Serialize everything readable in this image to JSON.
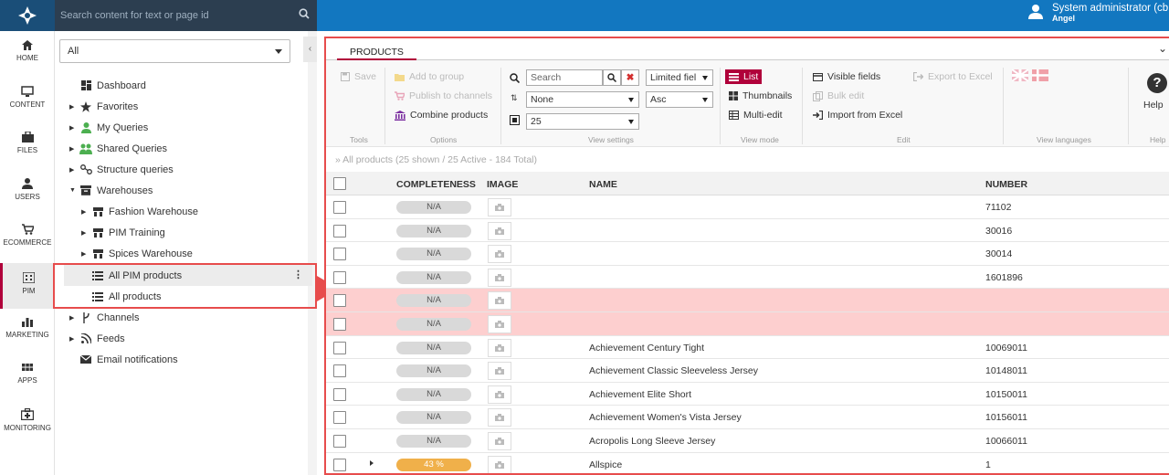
{
  "topbar": {
    "search_placeholder": "Search content for text or page id",
    "user_name": "System administrator (cb",
    "user_sub": "Angel"
  },
  "nav": [
    {
      "label": "HOME",
      "icon": "home-icon"
    },
    {
      "label": "CONTENT",
      "icon": "monitor-icon"
    },
    {
      "label": "FILES",
      "icon": "briefcase-icon"
    },
    {
      "label": "USERS",
      "icon": "user-icon"
    },
    {
      "label": "ECOMMERCE",
      "icon": "cart-icon"
    },
    {
      "label": "PIM",
      "icon": "building-icon",
      "active": true
    },
    {
      "label": "MARKETING",
      "icon": "bar-chart-icon"
    },
    {
      "label": "APPS",
      "icon": "grid-icon"
    },
    {
      "label": "MONITORING",
      "icon": "medkit-icon"
    }
  ],
  "tree": {
    "filter_value": "All",
    "items": [
      {
        "label": "Dashboard"
      },
      {
        "label": "Favorites"
      },
      {
        "label": "My Queries"
      },
      {
        "label": "Shared Queries"
      },
      {
        "label": "Structure queries"
      },
      {
        "label": "Warehouses"
      },
      {
        "label": "Fashion Warehouse"
      },
      {
        "label": "PIM Training"
      },
      {
        "label": "Spices Warehouse"
      },
      {
        "label": "All PIM products"
      },
      {
        "label": "All products"
      },
      {
        "label": "Channels"
      },
      {
        "label": "Feeds"
      },
      {
        "label": "Email notifications"
      }
    ],
    "more_menu": "⋮"
  },
  "panel": {
    "tab": "PRODUCTS",
    "collapse": "⌄",
    "ribbon": {
      "save": "Save",
      "add_to_group": "Add to group",
      "publish": "Publish to channels",
      "combine": "Combine products",
      "search_placeholder": "Search",
      "sort_field": "None",
      "page_size": "25",
      "fields_mode": "Limited fiel",
      "sort_dir": "Asc",
      "list": "List",
      "thumbnails": "Thumbnails",
      "multi_edit": "Multi-edit",
      "visible_fields": "Visible fields",
      "bulk_edit": "Bulk edit",
      "import_excel": "Import from Excel",
      "export_excel": "Export to Excel",
      "help": "Help",
      "groups": {
        "tools": "Tools",
        "options": "Options",
        "view_settings": "View settings",
        "view_mode": "View mode",
        "edit": "Edit",
        "view_languages": "View languages",
        "help": "Help"
      }
    },
    "summary": "» All products (25 shown / 25 Active - 184 Total)",
    "columns": {
      "completeness": "COMPLETENESS",
      "image": "IMAGE",
      "name": "NAME",
      "number": "NUMBER"
    },
    "rows": [
      {
        "completeness": "N/A",
        "name": "",
        "number": "71102"
      },
      {
        "completeness": "N/A",
        "name": "",
        "number": "30016"
      },
      {
        "completeness": "N/A",
        "name": "",
        "number": "30014"
      },
      {
        "completeness": "N/A",
        "name": "",
        "number": "1601896"
      },
      {
        "completeness": "N/A",
        "name": "",
        "number": "",
        "error": true
      },
      {
        "completeness": "N/A",
        "name": "",
        "number": "",
        "error": true
      },
      {
        "completeness": "N/A",
        "name": "Achievement Century Tight",
        "number": "10069011"
      },
      {
        "completeness": "N/A",
        "name": "Achievement Classic Sleeveless Jersey",
        "number": "10148011"
      },
      {
        "completeness": "N/A",
        "name": "Achievement Elite Short",
        "number": "10150011"
      },
      {
        "completeness": "N/A",
        "name": "Achievement Women's Vista Jersey",
        "number": "10156011"
      },
      {
        "completeness": "N/A",
        "name": "Acropolis Long Sleeve Jersey",
        "number": "10066011"
      },
      {
        "completeness": "43 %",
        "completeness_value": 43,
        "name": "Allspice",
        "number": "1",
        "expandable": true
      }
    ]
  },
  "colors": {
    "brand": "#1277c0",
    "accent": "#b0003a",
    "highlight": "#e74c4c",
    "error_row": "#fdcfcf",
    "progress": "#f0b04a"
  }
}
